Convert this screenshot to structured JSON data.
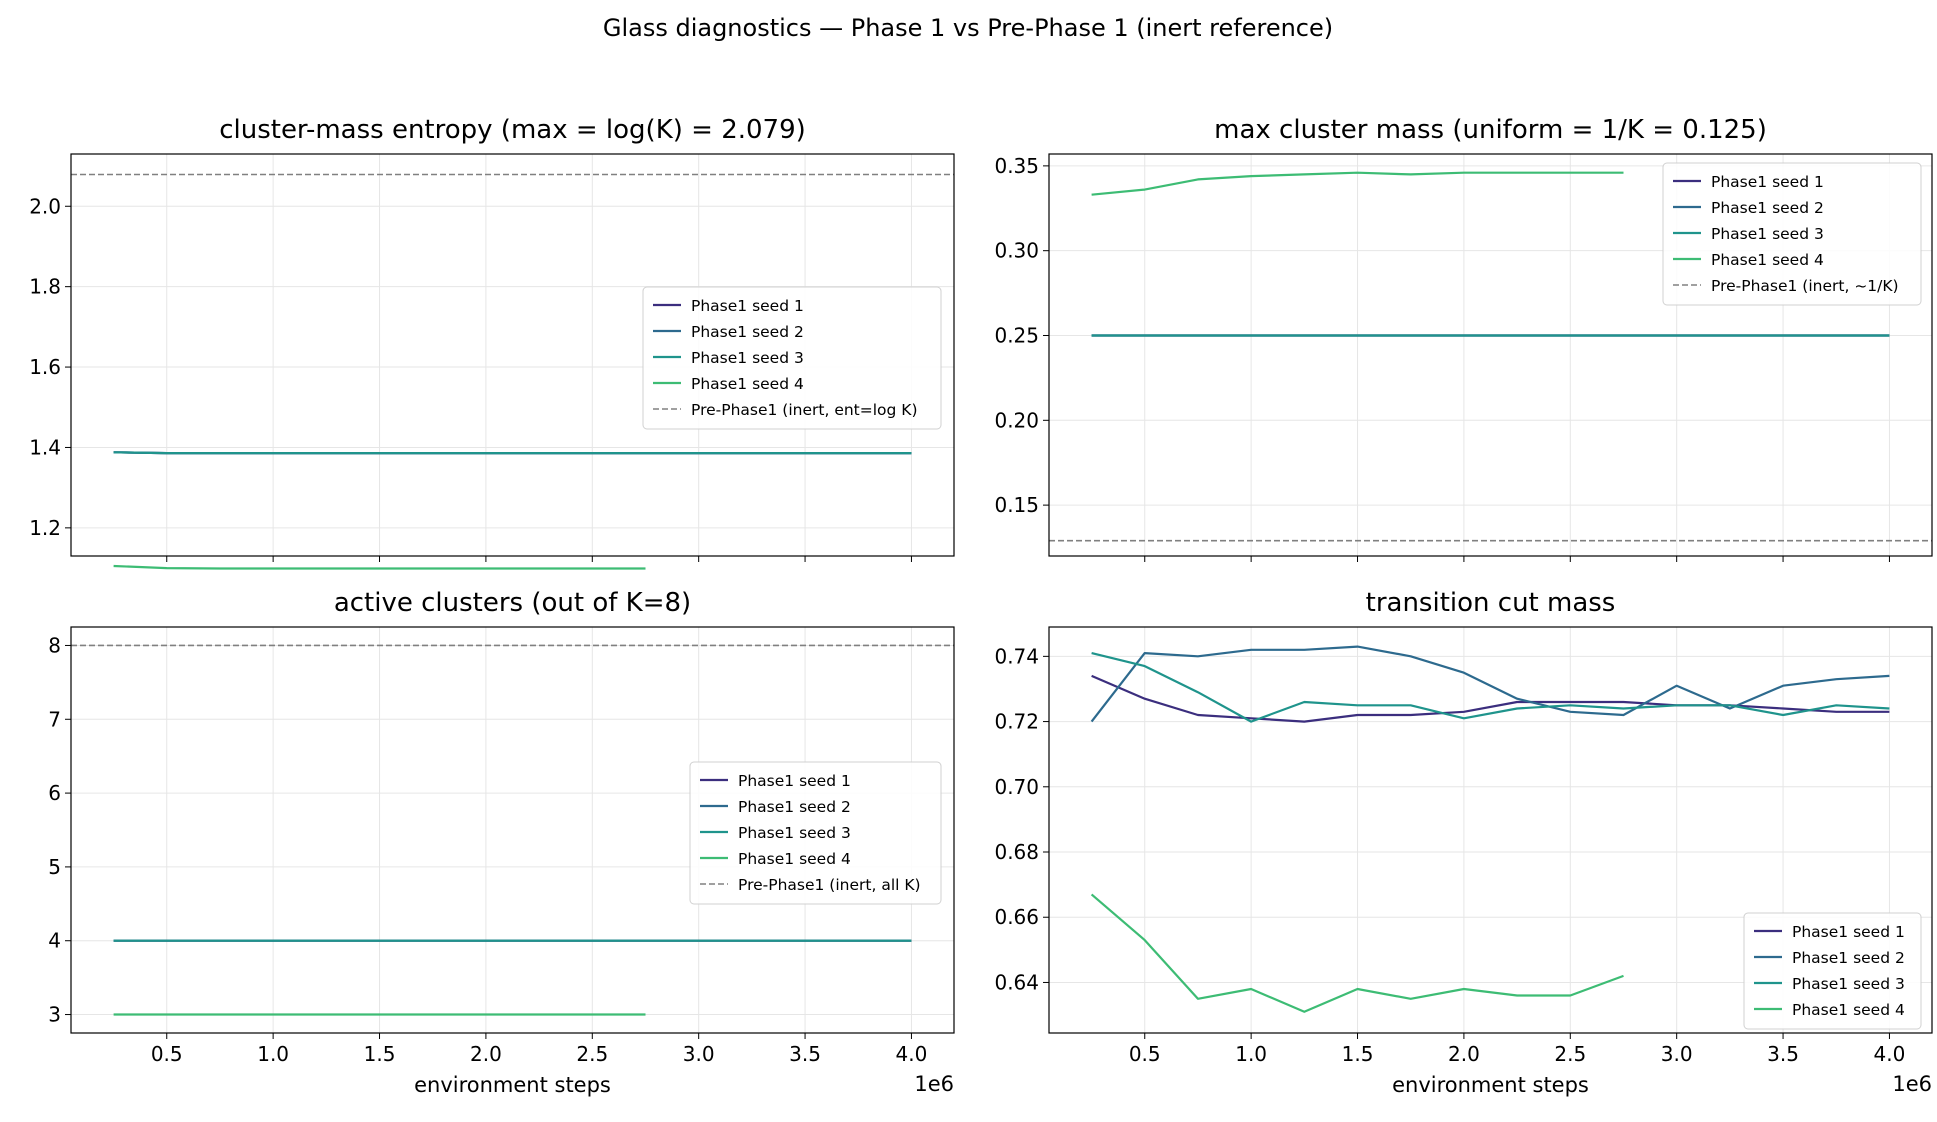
{
  "suptitle": "Glass diagnostics — Phase 1 vs Pre-Phase 1 (inert reference)",
  "colors": {
    "seed1": "#3b2e7e",
    "seed2": "#2d6a8e",
    "seed3": "#1f948c",
    "seed4": "#3dbc74",
    "reference": "#808080",
    "grid": "#e6e6e6"
  },
  "chart_data": [
    {
      "type": "line",
      "title": "cluster-mass entropy   (max = log(K) = 2.079)",
      "xlabel": "",
      "ylabel": "",
      "xlim": [
        50000,
        4200000
      ],
      "ylim": [
        1.13,
        2.13
      ],
      "x_ticks": [
        500000,
        1000000,
        1500000,
        2000000,
        2500000,
        3000000,
        3500000,
        4000000
      ],
      "x_tick_labels": [
        "",
        "",
        "",
        "",
        "",
        "",
        "",
        ""
      ],
      "y_ticks": [
        1.2,
        1.4,
        1.6,
        1.8,
        2.0
      ],
      "y_tick_labels": [
        "1.2",
        "1.4",
        "1.6",
        "1.8",
        "2.0"
      ],
      "x_offset_label": "",
      "grid": true,
      "legend_position": "center-right",
      "series": [
        {
          "name": "Phase1 seed 1",
          "color_key": "seed1",
          "x": [
            250000,
            500000,
            750000,
            1000000,
            1250000,
            1500000,
            1750000,
            2000000,
            2250000,
            2500000,
            2750000,
            3000000,
            3250000,
            3500000,
            3750000,
            4000000
          ],
          "y": [
            1.388,
            1.386,
            1.386,
            1.386,
            1.386,
            1.386,
            1.386,
            1.386,
            1.386,
            1.386,
            1.386,
            1.386,
            1.386,
            1.386,
            1.386,
            1.386
          ]
        },
        {
          "name": "Phase1 seed 2",
          "color_key": "seed2",
          "x": [
            250000,
            500000,
            750000,
            1000000,
            1250000,
            1500000,
            1750000,
            2000000,
            2250000,
            2500000,
            2750000,
            3000000,
            3250000,
            3500000,
            3750000,
            4000000
          ],
          "y": [
            1.388,
            1.386,
            1.386,
            1.386,
            1.386,
            1.386,
            1.386,
            1.386,
            1.386,
            1.386,
            1.386,
            1.386,
            1.386,
            1.386,
            1.386,
            1.386
          ]
        },
        {
          "name": "Phase1 seed 3",
          "color_key": "seed3",
          "x": [
            250000,
            500000,
            750000,
            1000000,
            1250000,
            1500000,
            1750000,
            2000000,
            2250000,
            2500000,
            2750000,
            3000000,
            3250000,
            3500000,
            3750000,
            4000000
          ],
          "y": [
            1.388,
            1.386,
            1.386,
            1.386,
            1.386,
            1.386,
            1.386,
            1.386,
            1.386,
            1.386,
            1.386,
            1.386,
            1.386,
            1.386,
            1.386,
            1.386
          ]
        },
        {
          "name": "Phase1 seed 4",
          "color_key": "seed4",
          "x": [
            250000,
            500000,
            750000,
            1000000,
            1250000,
            1500000,
            1750000,
            2000000,
            2250000,
            2500000,
            2750000
          ],
          "y": [
            1.105,
            1.1,
            1.099,
            1.099,
            1.099,
            1.099,
            1.099,
            1.099,
            1.099,
            1.099,
            1.099
          ]
        }
      ],
      "reference": {
        "name": "Pre-Phase1 (inert, ent=log K)",
        "y": 2.079
      }
    },
    {
      "type": "line",
      "title": "max cluster mass   (uniform = 1/K = 0.125)",
      "xlabel": "",
      "ylabel": "",
      "xlim": [
        50000,
        4200000
      ],
      "ylim": [
        0.12,
        0.357
      ],
      "x_ticks": [
        500000,
        1000000,
        1500000,
        2000000,
        2500000,
        3000000,
        3500000,
        4000000
      ],
      "x_tick_labels": [
        "",
        "",
        "",
        "",
        "",
        "",
        "",
        ""
      ],
      "y_ticks": [
        0.15,
        0.2,
        0.25,
        0.3,
        0.35
      ],
      "y_tick_labels": [
        "0.15",
        "0.20",
        "0.25",
        "0.30",
        "0.35"
      ],
      "x_offset_label": "",
      "grid": true,
      "legend_position": "top-right",
      "series": [
        {
          "name": "Phase1 seed 1",
          "color_key": "seed1",
          "x": [
            250000,
            500000,
            750000,
            1000000,
            1250000,
            1500000,
            1750000,
            2000000,
            2250000,
            2500000,
            2750000,
            3000000,
            3250000,
            3500000,
            3750000,
            4000000
          ],
          "y": [
            0.25,
            0.25,
            0.25,
            0.25,
            0.25,
            0.25,
            0.25,
            0.25,
            0.25,
            0.25,
            0.25,
            0.25,
            0.25,
            0.25,
            0.25,
            0.25
          ]
        },
        {
          "name": "Phase1 seed 2",
          "color_key": "seed2",
          "x": [
            250000,
            500000,
            750000,
            1000000,
            1250000,
            1500000,
            1750000,
            2000000,
            2250000,
            2500000,
            2750000,
            3000000,
            3250000,
            3500000,
            3750000,
            4000000
          ],
          "y": [
            0.25,
            0.25,
            0.25,
            0.25,
            0.25,
            0.25,
            0.25,
            0.25,
            0.25,
            0.25,
            0.25,
            0.25,
            0.25,
            0.25,
            0.25,
            0.25
          ]
        },
        {
          "name": "Phase1 seed 3",
          "color_key": "seed3",
          "x": [
            250000,
            500000,
            750000,
            1000000,
            1250000,
            1500000,
            1750000,
            2000000,
            2250000,
            2500000,
            2750000,
            3000000,
            3250000,
            3500000,
            3750000,
            4000000
          ],
          "y": [
            0.25,
            0.25,
            0.25,
            0.25,
            0.25,
            0.25,
            0.25,
            0.25,
            0.25,
            0.25,
            0.25,
            0.25,
            0.25,
            0.25,
            0.25,
            0.25
          ]
        },
        {
          "name": "Phase1 seed 4",
          "color_key": "seed4",
          "x": [
            250000,
            500000,
            750000,
            1000000,
            1250000,
            1500000,
            1750000,
            2000000,
            2250000,
            2500000,
            2750000
          ],
          "y": [
            0.333,
            0.336,
            0.342,
            0.344,
            0.345,
            0.346,
            0.345,
            0.346,
            0.346,
            0.346,
            0.346
          ]
        }
      ],
      "reference": {
        "name": "Pre-Phase1 (inert, ~1/K)",
        "y": 0.129
      }
    },
    {
      "type": "line",
      "title": "active clusters   (out of K=8)",
      "xlabel": "environment steps",
      "ylabel": "",
      "xlim": [
        50000,
        4200000
      ],
      "ylim": [
        2.75,
        8.25
      ],
      "x_ticks": [
        500000,
        1000000,
        1500000,
        2000000,
        2500000,
        3000000,
        3500000,
        4000000
      ],
      "x_tick_labels": [
        "0.5",
        "1.0",
        "1.5",
        "2.0",
        "2.5",
        "3.0",
        "3.5",
        "4.0"
      ],
      "y_ticks": [
        3,
        4,
        5,
        6,
        7,
        8
      ],
      "y_tick_labels": [
        "3",
        "4",
        "5",
        "6",
        "7",
        "8"
      ],
      "x_offset_label": "1e6",
      "grid": true,
      "legend_position": "center-right",
      "series": [
        {
          "name": "Phase1 seed 1",
          "color_key": "seed1",
          "x": [
            250000,
            500000,
            750000,
            1000000,
            1250000,
            1500000,
            1750000,
            2000000,
            2250000,
            2500000,
            2750000,
            3000000,
            3250000,
            3500000,
            3750000,
            4000000
          ],
          "y": [
            4,
            4,
            4,
            4,
            4,
            4,
            4,
            4,
            4,
            4,
            4,
            4,
            4,
            4,
            4,
            4
          ]
        },
        {
          "name": "Phase1 seed 2",
          "color_key": "seed2",
          "x": [
            250000,
            500000,
            750000,
            1000000,
            1250000,
            1500000,
            1750000,
            2000000,
            2250000,
            2500000,
            2750000,
            3000000,
            3250000,
            3500000,
            3750000,
            4000000
          ],
          "y": [
            4,
            4,
            4,
            4,
            4,
            4,
            4,
            4,
            4,
            4,
            4,
            4,
            4,
            4,
            4,
            4
          ]
        },
        {
          "name": "Phase1 seed 3",
          "color_key": "seed3",
          "x": [
            250000,
            500000,
            750000,
            1000000,
            1250000,
            1500000,
            1750000,
            2000000,
            2250000,
            2500000,
            2750000,
            3000000,
            3250000,
            3500000,
            3750000,
            4000000
          ],
          "y": [
            4,
            4,
            4,
            4,
            4,
            4,
            4,
            4,
            4,
            4,
            4,
            4,
            4,
            4,
            4,
            4
          ]
        },
        {
          "name": "Phase1 seed 4",
          "color_key": "seed4",
          "x": [
            250000,
            500000,
            750000,
            1000000,
            1250000,
            1500000,
            1750000,
            2000000,
            2250000,
            2500000,
            2750000
          ],
          "y": [
            3,
            3,
            3,
            3,
            3,
            3,
            3,
            3,
            3,
            3,
            3
          ]
        }
      ],
      "reference": {
        "name": "Pre-Phase1 (inert, all K)",
        "y": 8
      }
    },
    {
      "type": "line",
      "title": "transition cut mass",
      "xlabel": "environment steps",
      "ylabel": "",
      "xlim": [
        50000,
        4200000
      ],
      "ylim": [
        0.6245,
        0.749
      ],
      "x_ticks": [
        500000,
        1000000,
        1500000,
        2000000,
        2500000,
        3000000,
        3500000,
        4000000
      ],
      "x_tick_labels": [
        "0.5",
        "1.0",
        "1.5",
        "2.0",
        "2.5",
        "3.0",
        "3.5",
        "4.0"
      ],
      "y_ticks": [
        0.64,
        0.66,
        0.68,
        0.7,
        0.72,
        0.74
      ],
      "y_tick_labels": [
        "0.64",
        "0.66",
        "0.68",
        "0.70",
        "0.72",
        "0.74"
      ],
      "x_offset_label": "1e6",
      "grid": true,
      "legend_position": "lower-right",
      "series": [
        {
          "name": "Phase1 seed 1",
          "color_key": "seed1",
          "x": [
            250000,
            500000,
            750000,
            1000000,
            1250000,
            1500000,
            1750000,
            2000000,
            2250000,
            2500000,
            2750000,
            3000000,
            3250000,
            3500000,
            3750000,
            4000000
          ],
          "y": [
            0.734,
            0.727,
            0.722,
            0.721,
            0.72,
            0.722,
            0.722,
            0.723,
            0.726,
            0.726,
            0.726,
            0.725,
            0.725,
            0.724,
            0.723,
            0.723
          ]
        },
        {
          "name": "Phase1 seed 2",
          "color_key": "seed2",
          "x": [
            250000,
            500000,
            750000,
            1000000,
            1250000,
            1500000,
            1750000,
            2000000,
            2250000,
            2500000,
            2750000,
            3000000,
            3250000,
            3500000,
            3750000,
            4000000
          ],
          "y": [
            0.72,
            0.741,
            0.74,
            0.742,
            0.742,
            0.743,
            0.74,
            0.735,
            0.727,
            0.723,
            0.722,
            0.731,
            0.724,
            0.731,
            0.733,
            0.734
          ]
        },
        {
          "name": "Phase1 seed 3",
          "color_key": "seed3",
          "x": [
            250000,
            500000,
            750000,
            1000000,
            1250000,
            1500000,
            1750000,
            2000000,
            2250000,
            2500000,
            2750000,
            3000000,
            3250000,
            3500000,
            3750000,
            4000000
          ],
          "y": [
            0.741,
            0.737,
            0.729,
            0.72,
            0.726,
            0.725,
            0.725,
            0.721,
            0.724,
            0.725,
            0.724,
            0.725,
            0.725,
            0.722,
            0.725,
            0.724
          ]
        },
        {
          "name": "Phase1 seed 4",
          "color_key": "seed4",
          "x": [
            250000,
            500000,
            750000,
            1000000,
            1250000,
            1500000,
            1750000,
            2000000,
            2250000,
            2500000,
            2750000
          ],
          "y": [
            0.667,
            0.653,
            0.635,
            0.638,
            0.631,
            0.638,
            0.635,
            0.638,
            0.636,
            0.636,
            0.642
          ]
        }
      ],
      "reference": null
    }
  ]
}
